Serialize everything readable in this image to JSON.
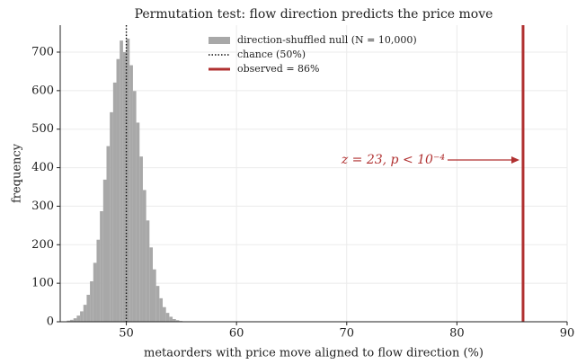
{
  "chart_data": {
    "type": "histogram",
    "title": "Permutation test: flow direction predicts the price move",
    "xlabel": "metaorders with price move aligned to flow direction (%)",
    "ylabel": "frequency",
    "bins": [
      44.6,
      44.9,
      45.2,
      45.5,
      45.8,
      46.1,
      46.4,
      46.7,
      47.0,
      47.3,
      47.6,
      47.9,
      48.2,
      48.5,
      48.8,
      49.1,
      49.4,
      49.7,
      50.0,
      50.3,
      50.6,
      50.9,
      51.2,
      51.5,
      51.8,
      52.1,
      52.4,
      52.7,
      53.0,
      53.3,
      53.6,
      53.9,
      54.2,
      54.5,
      54.8,
      55.1
    ],
    "series": [
      {
        "name": "direction-shuffled null (N = 10,000)",
        "color": "#a8a8a8",
        "values": [
          3,
          5,
          9,
          16,
          27,
          44,
          70,
          105,
          153,
          213,
          287,
          369,
          456,
          544,
          621,
          682,
          730,
          700,
          735,
          666,
          599,
          517,
          429,
          342,
          263,
          193,
          136,
          93,
          61,
          38,
          23,
          13,
          7,
          4,
          2
        ]
      }
    ],
    "vlines": [
      {
        "name": "chance (50%)",
        "x": 50,
        "color": "#111111",
        "style": "dotted"
      },
      {
        "name": "observed = 86%",
        "x": 86,
        "color": "#b03030",
        "style": "solid"
      }
    ],
    "annotation": {
      "text": "z = 23,  p < 10⁻⁴",
      "xy": [
        86,
        420
      ],
      "color": "#b03030"
    },
    "xlim": [
      44,
      90
    ],
    "xticks": [
      50,
      60,
      70,
      80,
      90
    ],
    "ylim": [
      0,
      770
    ],
    "yticks": [
      0,
      100,
      200,
      300,
      400,
      500,
      600,
      700
    ],
    "grid": true,
    "legend": "upper center"
  }
}
